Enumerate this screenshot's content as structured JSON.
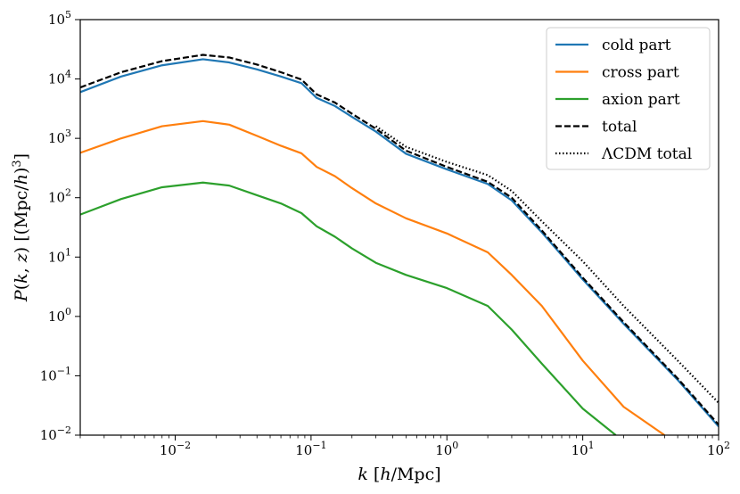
{
  "chart_data": {
    "type": "line",
    "title": "",
    "xlabel": "k [h/Mpc]",
    "ylabel": "P(k, z) [(Mpc/h)³]",
    "xscale": "log",
    "yscale": "log",
    "xlim": [
      0.002,
      100
    ],
    "ylim": [
      0.01,
      100000
    ],
    "x_ticks": [
      {
        "value": 0.01,
        "base": "10",
        "exp": "−2"
      },
      {
        "value": 0.1,
        "base": "10",
        "exp": "−1"
      },
      {
        "value": 1,
        "base": "10",
        "exp": "0"
      },
      {
        "value": 10,
        "base": "10",
        "exp": "1"
      },
      {
        "value": 100,
        "base": "10",
        "exp": "2"
      }
    ],
    "y_ticks": [
      {
        "value": 0.01,
        "base": "10",
        "exp": "−2"
      },
      {
        "value": 0.1,
        "base": "10",
        "exp": "−1"
      },
      {
        "value": 1,
        "base": "10",
        "exp": "0"
      },
      {
        "value": 10,
        "base": "10",
        "exp": "1"
      },
      {
        "value": 100,
        "base": "10",
        "exp": "2"
      },
      {
        "value": 1000,
        "base": "10",
        "exp": "3"
      },
      {
        "value": 10000,
        "base": "10",
        "exp": "4"
      },
      {
        "value": 100000,
        "base": "10",
        "exp": "5"
      }
    ],
    "grid": false,
    "legend_position": "top-right",
    "series": [
      {
        "name": "cold part",
        "color": "#1f77b4",
        "style": "solid",
        "x": [
          0.002,
          0.004,
          0.008,
          0.016,
          0.025,
          0.04,
          0.06,
          0.085,
          0.11,
          0.15,
          0.2,
          0.3,
          0.5,
          1,
          2,
          3,
          5,
          10,
          20,
          50,
          100
        ],
        "y": [
          6000,
          11000,
          17000,
          21500,
          19000,
          14500,
          11000,
          8500,
          4800,
          3500,
          2300,
          1300,
          550,
          300,
          170,
          90,
          26,
          4.2,
          0.75,
          0.085,
          0.014
        ]
      },
      {
        "name": "cross part",
        "color": "#ff7f0e",
        "style": "solid",
        "x": [
          0.002,
          0.004,
          0.008,
          0.016,
          0.025,
          0.04,
          0.06,
          0.085,
          0.11,
          0.15,
          0.2,
          0.3,
          0.5,
          1,
          2,
          3,
          5,
          10,
          20,
          40
        ],
        "y": [
          570,
          1000,
          1600,
          1950,
          1700,
          1100,
          750,
          560,
          330,
          230,
          145,
          80,
          45,
          25,
          12,
          5,
          1.5,
          0.18,
          0.03,
          0.01
        ]
      },
      {
        "name": "axion part",
        "color": "#2ca02c",
        "style": "solid",
        "x": [
          0.002,
          0.004,
          0.008,
          0.016,
          0.025,
          0.04,
          0.06,
          0.085,
          0.11,
          0.15,
          0.2,
          0.3,
          0.5,
          1,
          2,
          3,
          5,
          10,
          17.5
        ],
        "y": [
          52,
          95,
          150,
          180,
          160,
          110,
          80,
          55,
          33,
          22,
          14,
          8,
          5,
          3,
          1.5,
          0.6,
          0.16,
          0.028,
          0.01
        ]
      },
      {
        "name": "total",
        "color": "#000000",
        "style": "dashed",
        "x": [
          0.002,
          0.004,
          0.008,
          0.016,
          0.025,
          0.04,
          0.06,
          0.085,
          0.11,
          0.15,
          0.2,
          0.3,
          0.5,
          1,
          2,
          3,
          5,
          10,
          20,
          50,
          100
        ],
        "y": [
          7200,
          13000,
          20000,
          25500,
          23000,
          17500,
          13000,
          9800,
          5500,
          4000,
          2600,
          1450,
          620,
          330,
          185,
          100,
          28,
          4.5,
          0.8,
          0.09,
          0.015
        ]
      },
      {
        "name": "ΛCDM total",
        "color": "#000000",
        "style": "dotted",
        "x": [
          0.3,
          0.5,
          1,
          2,
          3,
          5,
          10,
          20,
          50,
          100
        ],
        "y": [
          1600,
          720,
          400,
          240,
          130,
          40,
          8.5,
          1.5,
          0.18,
          0.035
        ]
      }
    ]
  }
}
